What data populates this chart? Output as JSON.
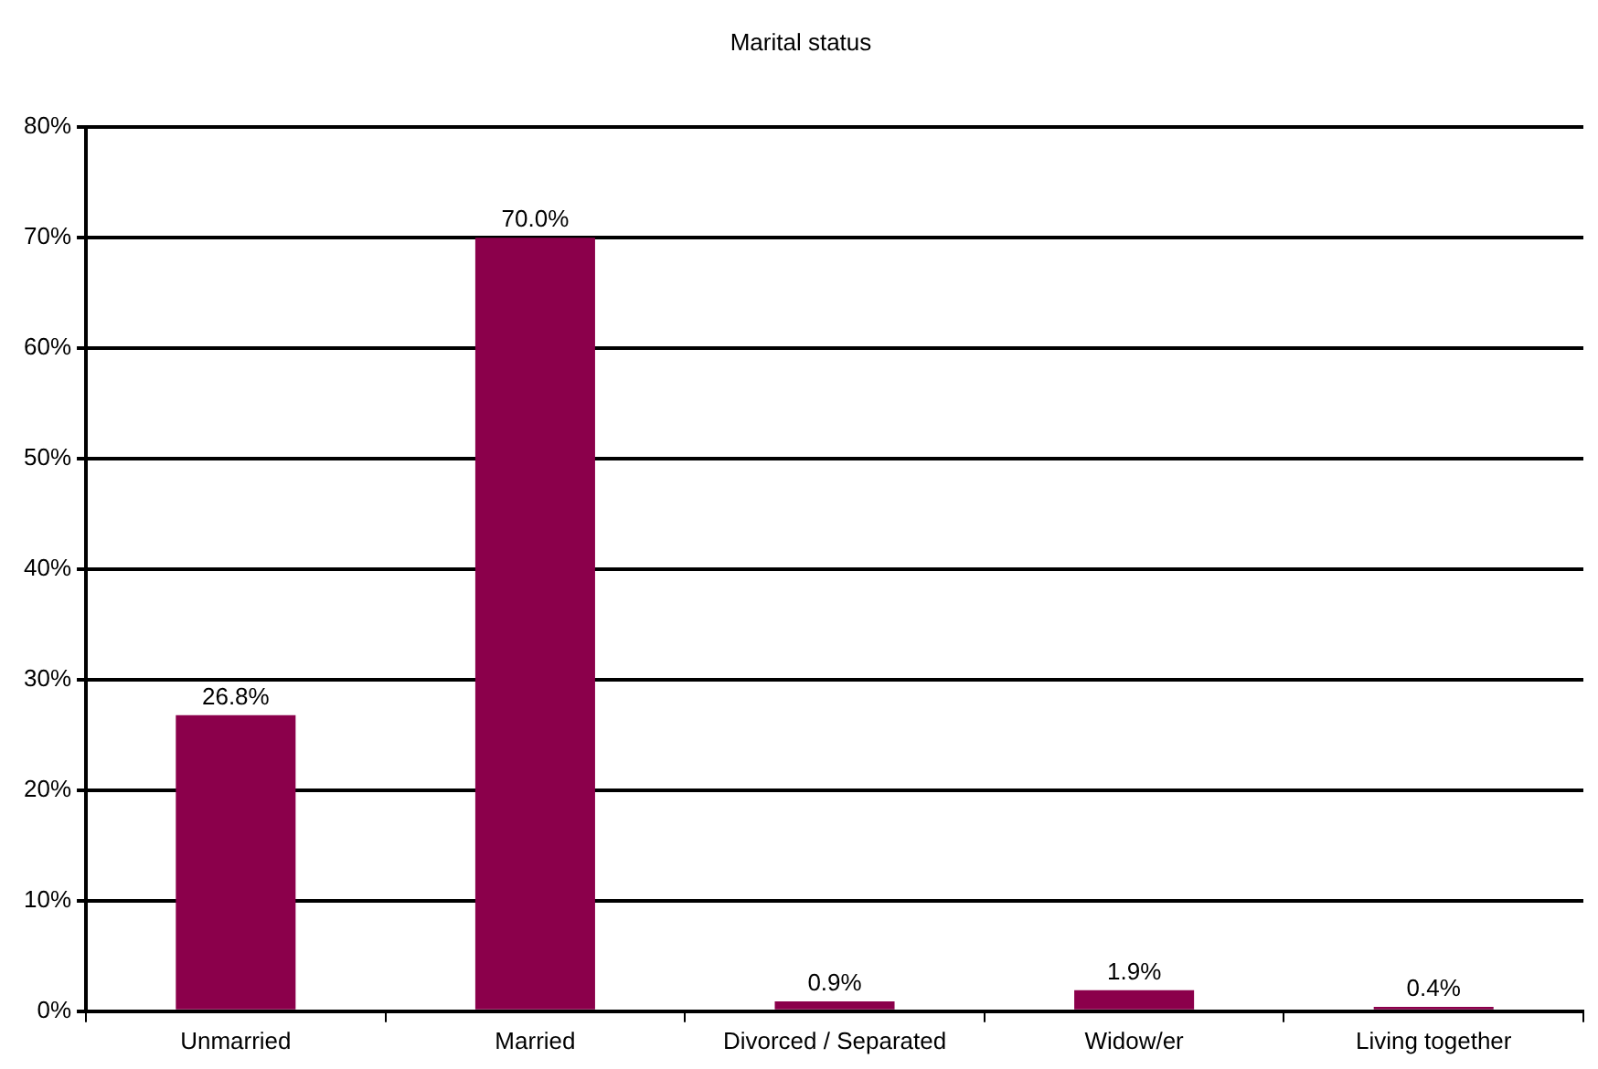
{
  "chart_data": {
    "type": "bar",
    "title": "Marital status",
    "categories": [
      "Unmarried",
      "Married",
      "Divorced / Separated",
      "Widow/er",
      "Living together"
    ],
    "values": [
      26.8,
      70.0,
      0.9,
      1.9,
      0.4
    ],
    "value_labels": [
      "26.8%",
      "70.0%",
      "0.9%",
      "1.9%",
      "0.4%"
    ],
    "color": "#8b004b",
    "ylim": [
      0,
      80
    ],
    "yticks": [
      {
        "value": 0,
        "label": "0%"
      },
      {
        "value": 10,
        "label": "10%"
      },
      {
        "value": 20,
        "label": "20%"
      },
      {
        "value": 30,
        "label": "30%"
      },
      {
        "value": 40,
        "label": "40%"
      },
      {
        "value": 50,
        "label": "50%"
      },
      {
        "value": 60,
        "label": "60%"
      },
      {
        "value": 70,
        "label": "70%"
      },
      {
        "value": 80,
        "label": "80%"
      }
    ],
    "grid": "y",
    "legend": false
  }
}
